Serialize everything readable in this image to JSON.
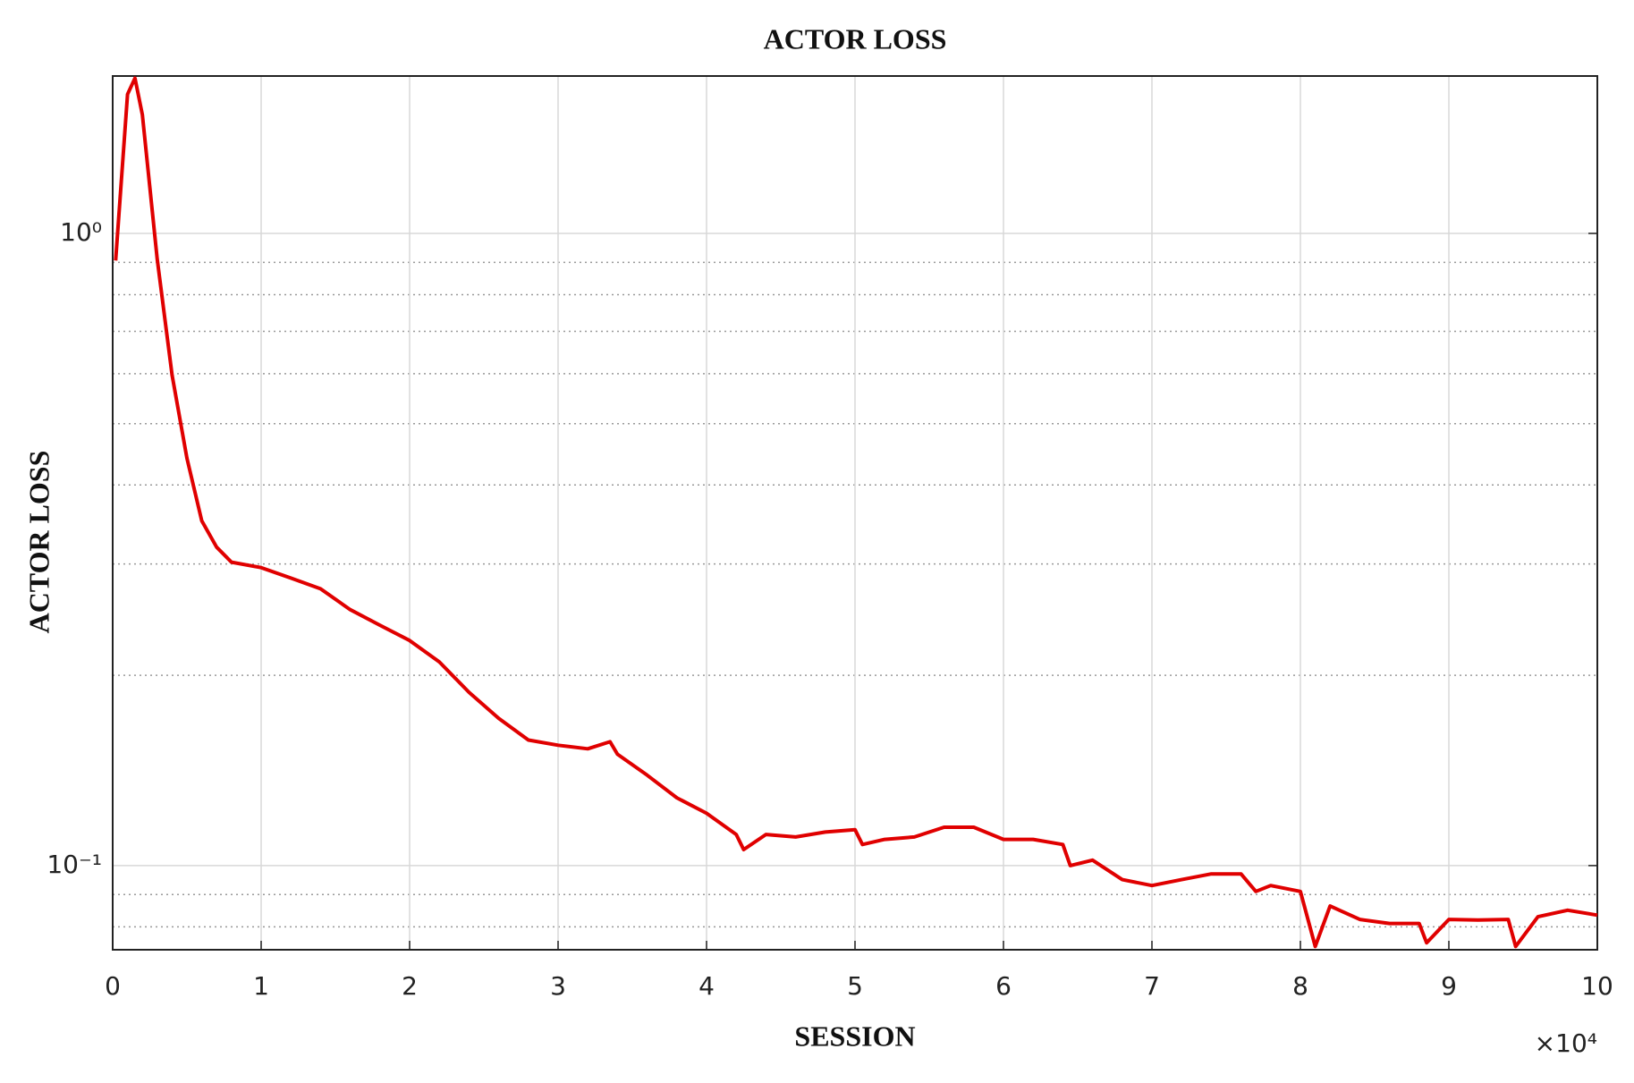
{
  "chart_data": {
    "type": "line",
    "title": "ACTOR LOSS",
    "x_label": "SESSION",
    "y_label": "ACTOR LOSS",
    "x_multiplier": "×10⁴",
    "x": [
      0.02,
      0.1,
      0.15,
      0.2,
      0.3,
      0.4,
      0.5,
      0.6,
      0.7,
      0.8,
      1.0,
      1.2,
      1.4,
      1.6,
      1.8,
      2.0,
      2.2,
      2.4,
      2.6,
      2.8,
      3.0,
      3.2,
      3.35,
      3.4,
      3.6,
      3.8,
      4.0,
      4.2,
      4.25,
      4.4,
      4.6,
      4.8,
      5.0,
      5.05,
      5.2,
      5.4,
      5.6,
      5.8,
      6.0,
      6.2,
      6.4,
      6.45,
      6.6,
      6.8,
      7.0,
      7.2,
      7.4,
      7.6,
      7.7,
      7.8,
      8.0,
      8.1,
      8.2,
      8.4,
      8.6,
      8.8,
      8.85,
      9.0,
      9.2,
      9.4,
      9.45,
      9.6,
      9.8,
      10.0
    ],
    "values": [
      0.906,
      1.66,
      1.76,
      1.54,
      0.91,
      0.597,
      0.441,
      0.351,
      0.319,
      0.302,
      0.296,
      0.285,
      0.274,
      0.254,
      0.24,
      0.227,
      0.21,
      0.188,
      0.171,
      0.158,
      0.155,
      0.153,
      0.157,
      0.15,
      0.139,
      0.128,
      0.121,
      0.112,
      0.106,
      0.112,
      0.111,
      0.113,
      0.114,
      0.108,
      0.11,
      0.111,
      0.115,
      0.115,
      0.11,
      0.11,
      0.108,
      0.1,
      0.102,
      0.095,
      0.093,
      0.095,
      0.097,
      0.097,
      0.091,
      0.093,
      0.091,
      0.0745,
      0.0863,
      0.0822,
      0.081,
      0.081,
      0.0755,
      0.0822,
      0.082,
      0.0822,
      0.0745,
      0.083,
      0.085,
      0.0835
    ],
    "color": "#e00000",
    "log_y": true,
    "grid": true,
    "xlim": [
      0,
      10
    ],
    "xticks": [
      0,
      1,
      2,
      3,
      4,
      5,
      6,
      7,
      8,
      9,
      10
    ],
    "ylim": [
      0.0736,
      1.774
    ],
    "yticks": [
      {
        "value": 0.1,
        "label": "10⁻¹"
      },
      {
        "value": 1,
        "label": "10⁰"
      }
    ],
    "yminorticks": [
      0.08,
      0.09,
      0.2,
      0.3,
      0.4,
      0.5,
      0.6,
      0.7,
      0.8,
      0.9
    ]
  }
}
